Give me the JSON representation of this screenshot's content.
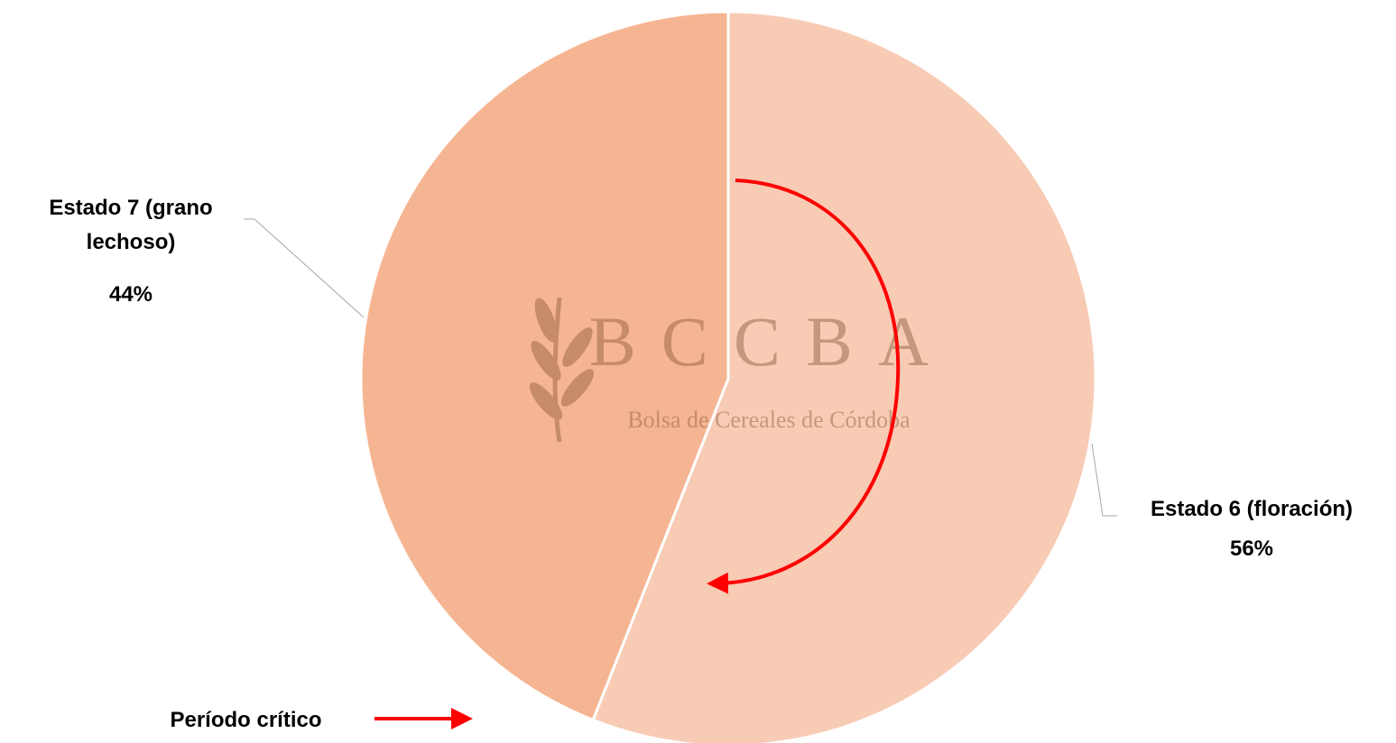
{
  "chart_data": {
    "type": "pie",
    "categories": [
      "Estado 6 (floración)",
      "Estado 7 (grano lechoso)"
    ],
    "values": [
      56,
      44
    ],
    "value_labels": [
      "56%",
      "44%"
    ],
    "colors": [
      "#f8cbb4",
      "#f6b592"
    ],
    "start_angle": 0,
    "direction": "clockwise",
    "annotation": "Período crítico",
    "watermark": {
      "title": "BCCBA",
      "subtitle": "Bolsa de Cereales de Córdoba"
    }
  }
}
